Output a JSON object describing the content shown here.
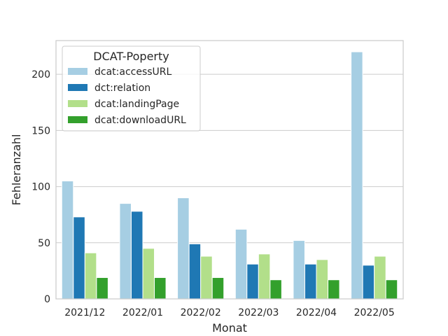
{
  "chart_data": {
    "type": "bar",
    "title": "",
    "xlabel": "Monat",
    "ylabel": "Fehleranzahl",
    "ylim": [
      0,
      230
    ],
    "yticks": [
      0,
      50,
      100,
      150,
      200
    ],
    "grid": true,
    "legend": {
      "title": "DCAT-Poperty",
      "placement": "top-left"
    },
    "categories": [
      "2021/12",
      "2022/01",
      "2022/02",
      "2022/03",
      "2022/04",
      "2022/05"
    ],
    "series": [
      {
        "name": "dcat:accessURL",
        "color": "#a6cee3",
        "values": [
          105,
          85,
          90,
          62,
          52,
          220
        ]
      },
      {
        "name": "dct:relation",
        "color": "#1f78b4",
        "values": [
          73,
          78,
          49,
          31,
          31,
          30
        ]
      },
      {
        "name": "dcat:landingPage",
        "color": "#b2df8a",
        "values": [
          41,
          45,
          38,
          40,
          35,
          38
        ]
      },
      {
        "name": "dcat:downloadURL",
        "color": "#33a02c",
        "values": [
          19,
          19,
          19,
          17,
          17,
          17
        ]
      }
    ]
  }
}
